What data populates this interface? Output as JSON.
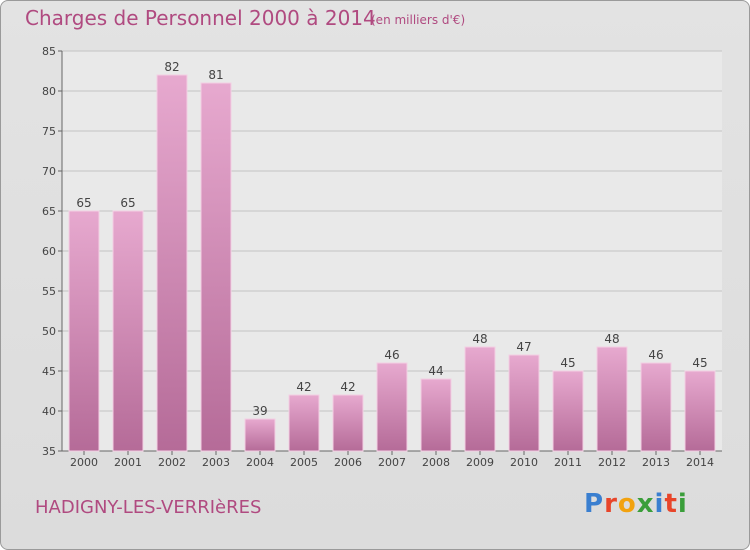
{
  "chart_data": {
    "type": "bar",
    "title": "Charges de Personnel 2000 à 2014",
    "subtitle": "(en milliers d'€)",
    "categories": [
      "2000",
      "2001",
      "2002",
      "2003",
      "2004",
      "2005",
      "2006",
      "2007",
      "2008",
      "2009",
      "2010",
      "2011",
      "2012",
      "2013",
      "2014"
    ],
    "values": [
      65,
      65,
      82,
      81,
      39,
      42,
      42,
      46,
      44,
      48,
      47,
      45,
      48,
      46,
      45
    ],
    "ylim": [
      35,
      85
    ],
    "yticks": [
      35,
      40,
      45,
      50,
      55,
      60,
      65,
      70,
      75,
      80,
      85
    ],
    "grid": true,
    "bar_color": "#d78fb8"
  },
  "footer": {
    "commune": "HADIGNY-LES-VERRIèRES",
    "logo_letters": [
      "P",
      "r",
      "o",
      "x",
      "i",
      "t",
      "i"
    ],
    "logo_colors": [
      "#3a7fd0",
      "#e8452a",
      "#f2a20f",
      "#3a9e3a",
      "#3a7fd0",
      "#e8452a",
      "#3a9e3a"
    ]
  }
}
